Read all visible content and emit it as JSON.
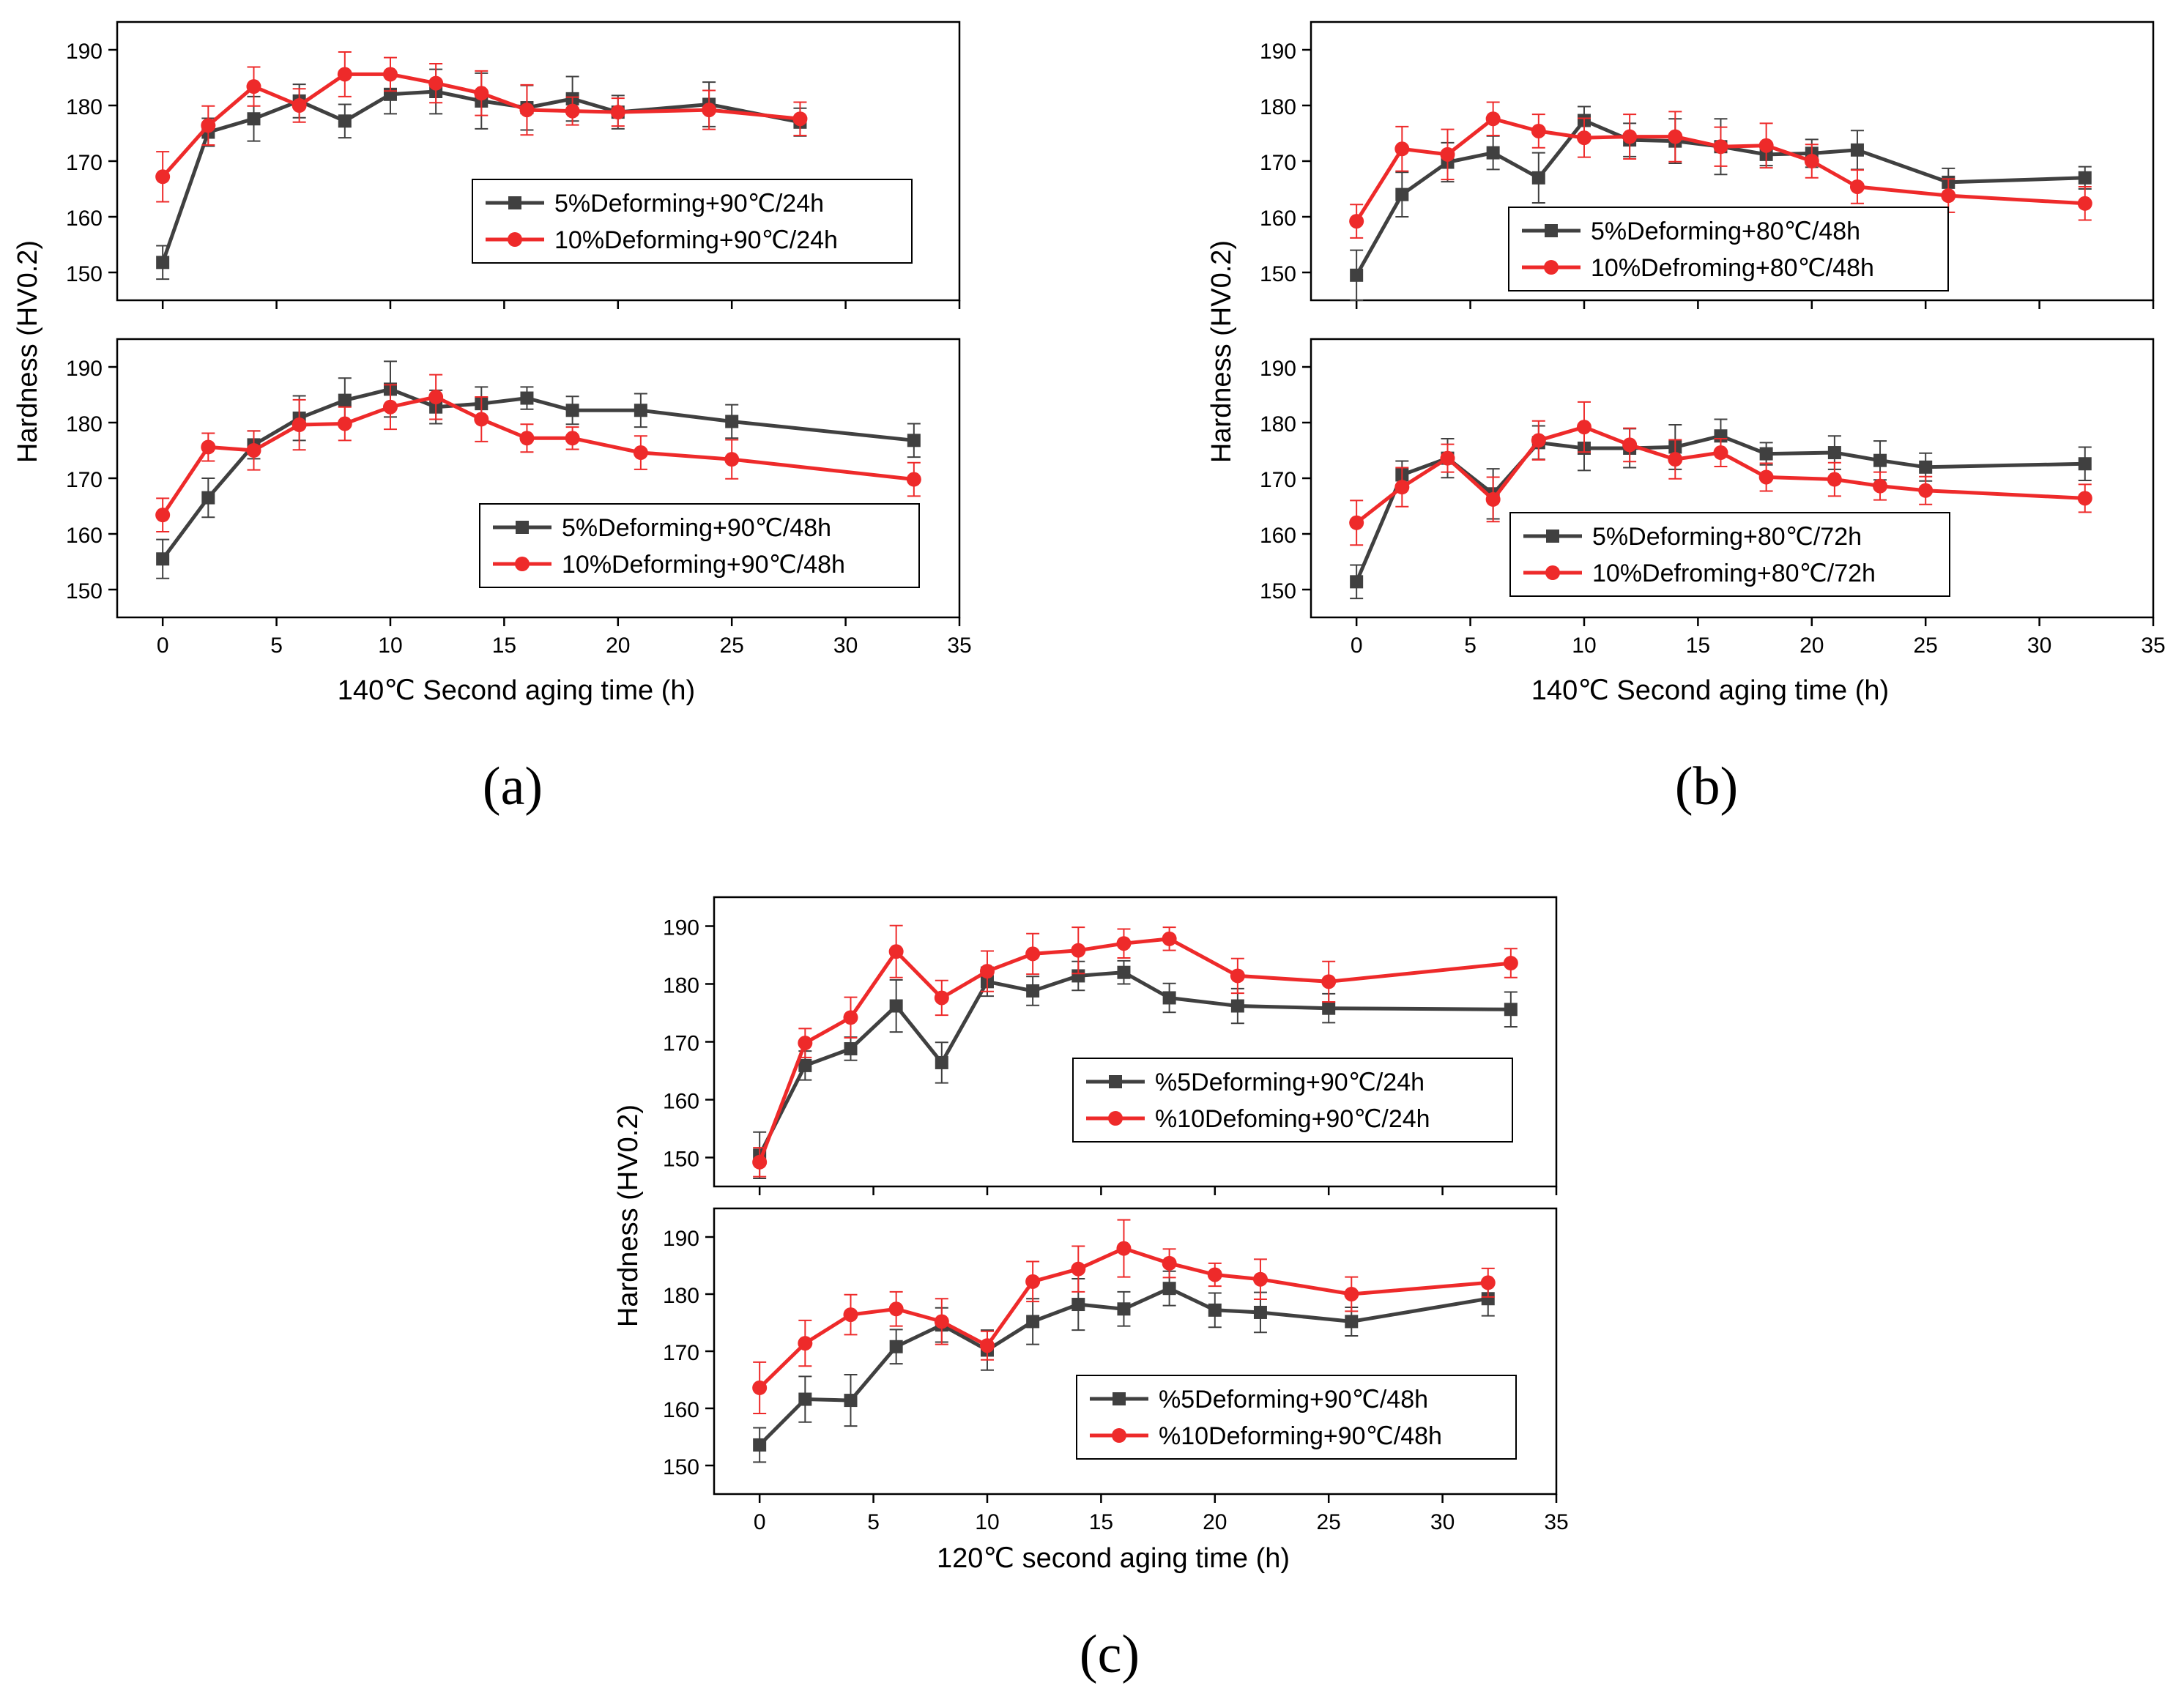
{
  "figure": {
    "colors": {
      "series_a": "#404040",
      "series_b": "#ee2a2a",
      "axis": "#000000"
    }
  },
  "panels": [
    {
      "label_text": "(a)",
      "xlabel": "140℃ Second aging time (h)",
      "ylabel": "Hardness (HV0.2)"
    },
    {
      "label_text": "(b)",
      "xlabel": "140℃ Second aging time (h)",
      "ylabel": "Hardness (HV0.2)"
    },
    {
      "label_text": "(c)",
      "xlabel": "120℃ second aging time (h)",
      "ylabel": "Hardness (HV0.2)"
    }
  ],
  "chart_data": [
    {
      "id": "a-top",
      "type": "line",
      "panel": "(a)",
      "position": "top",
      "xlim": [
        -2,
        35
      ],
      "ylim": [
        145,
        195
      ],
      "xticks": [
        0,
        5,
        10,
        15,
        20,
        25,
        30,
        35
      ],
      "yticks": [
        150,
        160,
        170,
        180,
        190
      ],
      "legend_position": "right",
      "series": [
        {
          "name": "5%Deforming+90℃/24h",
          "color": "#404040",
          "marker": "square",
          "x": [
            0,
            2,
            4,
            6,
            8,
            10,
            12,
            14,
            16,
            18,
            20,
            24,
            28
          ],
          "y": [
            151.8,
            175.2,
            177.6,
            180.8,
            177.2,
            182,
            182.5,
            180.8,
            179.6,
            181.2,
            178.8,
            180.2,
            177
          ],
          "err": [
            3,
            2.5,
            4,
            3,
            3,
            3.5,
            4,
            5,
            4,
            4,
            3,
            4,
            2.5
          ]
        },
        {
          "name": "10%Deforming+90℃/24h",
          "color": "#ee2a2a",
          "marker": "circle",
          "x": [
            0,
            2,
            4,
            6,
            8,
            10,
            12,
            14,
            16,
            18,
            20,
            24,
            28
          ],
          "y": [
            167.2,
            176.4,
            183.4,
            180,
            185.6,
            185.6,
            184,
            182.2,
            179.2,
            179,
            178.8,
            179.2,
            177.6
          ],
          "err": [
            4.5,
            3.5,
            3.5,
            3,
            4,
            3,
            3.5,
            4,
            4.5,
            2.5,
            2.5,
            3.5,
            3
          ]
        }
      ]
    },
    {
      "id": "a-bottom",
      "type": "line",
      "panel": "(a)",
      "position": "bottom",
      "xlim": [
        -2,
        35
      ],
      "ylim": [
        145,
        195
      ],
      "xticks": [
        0,
        5,
        10,
        15,
        20,
        25,
        30,
        35
      ],
      "xtick_labels": [
        "0",
        "5",
        "10",
        "15",
        "20",
        "25",
        "30",
        "35"
      ],
      "yticks": [
        150,
        160,
        170,
        180,
        190
      ],
      "legend_position": "lower-right",
      "series": [
        {
          "name": "5%Deforming+90℃/48h",
          "color": "#404040",
          "marker": "square",
          "x": [
            0,
            2,
            4,
            6,
            8,
            10,
            12,
            14,
            16,
            18,
            21,
            25,
            33
          ],
          "y": [
            155.5,
            166.5,
            176,
            180.8,
            184,
            186,
            182.8,
            183.4,
            184.4,
            182.2,
            182.2,
            180.2,
            176.8
          ],
          "err": [
            3.5,
            3.5,
            2.5,
            4,
            4,
            5,
            3,
            3,
            2,
            2.5,
            3,
            3,
            3
          ]
        },
        {
          "name": "10%Deforming+90℃/48h",
          "color": "#ee2a2a",
          "marker": "circle",
          "x": [
            0,
            2,
            4,
            6,
            8,
            10,
            12,
            14,
            16,
            18,
            21,
            25,
            33
          ],
          "y": [
            163.4,
            175.6,
            175,
            179.6,
            179.8,
            182.8,
            184.6,
            180.6,
            177.2,
            177.2,
            174.6,
            173.4,
            169.8
          ],
          "err": [
            3,
            2.5,
            3.5,
            4.5,
            3,
            4,
            4,
            4,
            2.5,
            2,
            3,
            3.5,
            3
          ]
        }
      ]
    },
    {
      "id": "b-top",
      "type": "line",
      "panel": "(b)",
      "position": "top",
      "xlim": [
        -2,
        35
      ],
      "ylim": [
        145,
        195
      ],
      "xticks": [
        0,
        5,
        10,
        15,
        20,
        25,
        30,
        35
      ],
      "yticks": [
        150,
        160,
        170,
        180,
        190
      ],
      "legend_position": "lower-right",
      "series": [
        {
          "name": "5%Deforming+80℃/48h",
          "color": "#404040",
          "marker": "square",
          "x": [
            0,
            2,
            4,
            6,
            8,
            10,
            12,
            14,
            16,
            18,
            20,
            22,
            26,
            32
          ],
          "y": [
            149.5,
            164,
            169.8,
            171.5,
            167,
            177.3,
            173.8,
            173.6,
            172.6,
            171.2,
            171.4,
            172,
            166.2,
            167
          ],
          "err": [
            4.5,
            4,
            3.5,
            3,
            4.5,
            2.5,
            3,
            4,
            5,
            2,
            2.5,
            3.5,
            2.5,
            2
          ]
        },
        {
          "name": "10%Defroming+80℃/48h",
          "color": "#ee2a2a",
          "marker": "circle",
          "x": [
            0,
            2,
            4,
            6,
            8,
            10,
            12,
            14,
            16,
            18,
            20,
            22,
            26,
            32
          ],
          "y": [
            159.2,
            172.2,
            171.2,
            177.6,
            175.4,
            174.2,
            174.4,
            174.4,
            172.6,
            172.8,
            170,
            165.4,
            163.8,
            162.4
          ],
          "err": [
            3,
            4,
            4.5,
            3,
            3,
            3.5,
            4,
            4.5,
            3.5,
            4,
            3,
            3,
            3,
            3
          ]
        }
      ]
    },
    {
      "id": "b-bottom",
      "type": "line",
      "panel": "(b)",
      "position": "bottom",
      "xlim": [
        -2,
        35
      ],
      "ylim": [
        145,
        195
      ],
      "xticks": [
        0,
        5,
        10,
        15,
        20,
        25,
        30,
        35
      ],
      "xtick_labels": [
        "0",
        "5",
        "10",
        "15",
        "20",
        "25",
        "30",
        "35"
      ],
      "yticks": [
        150,
        160,
        170,
        180,
        190
      ],
      "legend_position": "lower-right",
      "series": [
        {
          "name": "5%Deforming+80℃/72h",
          "color": "#404040",
          "marker": "square",
          "x": [
            0,
            2,
            4,
            6,
            8,
            10,
            12,
            14,
            16,
            18,
            21,
            23,
            25,
            32
          ],
          "y": [
            151.4,
            170.6,
            173.6,
            167.2,
            176.4,
            175.4,
            175.4,
            175.6,
            177.6,
            174.4,
            174.6,
            173.2,
            172,
            172.6
          ],
          "err": [
            3,
            2.5,
            3.5,
            4.5,
            3,
            4,
            3.5,
            4,
            3,
            2,
            3,
            3.5,
            2.5,
            3
          ]
        },
        {
          "name": "10%Defroming+80℃/72h",
          "color": "#ee2a2a",
          "marker": "circle",
          "x": [
            0,
            2,
            4,
            6,
            8,
            10,
            12,
            14,
            16,
            18,
            21,
            23,
            25,
            32
          ],
          "y": [
            162,
            168.4,
            173.6,
            166.2,
            176.8,
            179.2,
            176,
            173.4,
            174.6,
            170.2,
            169.8,
            168.6,
            167.8,
            166.4
          ],
          "err": [
            4,
            3.5,
            2.5,
            4,
            3.5,
            4.5,
            3,
            3.5,
            2.5,
            2.5,
            3,
            2.5,
            2.5,
            2.5
          ]
        }
      ]
    },
    {
      "id": "c-top",
      "type": "line",
      "panel": "(c)",
      "position": "top",
      "xlim": [
        -2,
        35
      ],
      "ylim": [
        145,
        195
      ],
      "xticks": [
        0,
        5,
        10,
        15,
        20,
        25,
        30,
        35
      ],
      "yticks": [
        150,
        160,
        170,
        180,
        190
      ],
      "legend_position": "lower-right",
      "series": [
        {
          "name": "%5Deforming+90℃/24h",
          "color": "#404040",
          "marker": "square",
          "x": [
            0,
            2,
            4,
            6,
            8,
            10,
            12,
            14,
            16,
            18,
            21,
            25,
            33
          ],
          "y": [
            150.4,
            165.9,
            168.8,
            176.2,
            166.4,
            180.4,
            178.8,
            181.4,
            182,
            177.6,
            176.2,
            175.8,
            175.6
          ],
          "err": [
            4,
            2.5,
            2,
            4.5,
            3.5,
            2.5,
            2.5,
            2.5,
            2,
            2.5,
            3,
            2.5,
            3
          ]
        },
        {
          "name": "%10Defoming+90℃/24h",
          "color": "#ee2a2a",
          "marker": "circle",
          "x": [
            0,
            2,
            4,
            6,
            8,
            10,
            12,
            14,
            16,
            18,
            21,
            25,
            33
          ],
          "y": [
            149.2,
            169.8,
            174.2,
            185.6,
            177.6,
            182.2,
            185.2,
            185.8,
            187,
            187.8,
            181.4,
            180.4,
            183.6
          ],
          "err": [
            2.5,
            2.5,
            3.5,
            4.5,
            3,
            3.5,
            3.5,
            4,
            2.5,
            2,
            3,
            3.5,
            2.5
          ]
        }
      ]
    },
    {
      "id": "c-bottom",
      "type": "line",
      "panel": "(c)",
      "position": "bottom",
      "xlim": [
        -2,
        35
      ],
      "ylim": [
        145,
        195
      ],
      "xticks": [
        0,
        5,
        10,
        15,
        20,
        25,
        30,
        35
      ],
      "xtick_labels": [
        "0",
        "5",
        "10",
        "15",
        "20",
        "25",
        "30",
        "35"
      ],
      "yticks": [
        150,
        160,
        170,
        180,
        190
      ],
      "legend_position": "lower-right",
      "series": [
        {
          "name": "%5Deforming+90℃/48h",
          "color": "#404040",
          "marker": "square",
          "x": [
            0,
            2,
            4,
            6,
            8,
            10,
            12,
            14,
            16,
            18,
            20,
            22,
            26,
            32
          ],
          "y": [
            153.6,
            161.6,
            161.4,
            170.8,
            174.6,
            170.2,
            175.2,
            178.2,
            177.4,
            181,
            177.2,
            176.8,
            175.2,
            179.2
          ],
          "err": [
            3,
            4,
            4.5,
            3,
            3,
            3.5,
            4,
            4.5,
            3,
            3,
            3,
            3.5,
            2.5,
            3
          ]
        },
        {
          "name": "%10Deforming+90℃/48h",
          "color": "#ee2a2a",
          "marker": "circle",
          "x": [
            0,
            2,
            4,
            6,
            8,
            10,
            12,
            14,
            16,
            18,
            20,
            22,
            26,
            32
          ],
          "y": [
            163.6,
            171.4,
            176.4,
            177.4,
            175.2,
            171,
            182.2,
            184.4,
            188,
            185.4,
            183.4,
            182.6,
            180,
            182
          ],
          "err": [
            4.5,
            4,
            3.5,
            3,
            4,
            2.5,
            3.5,
            4,
            5,
            2.5,
            2,
            3.5,
            3,
            2.5
          ]
        }
      ]
    }
  ]
}
